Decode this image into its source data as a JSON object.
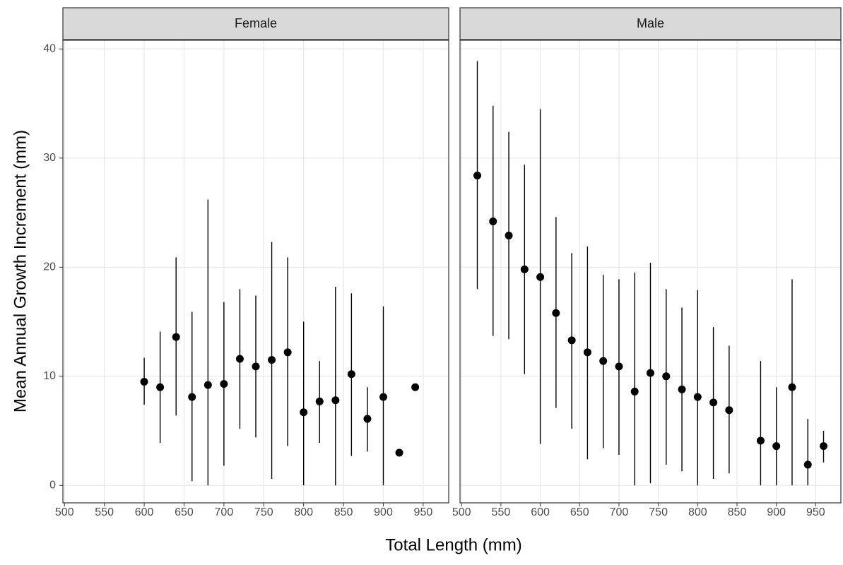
{
  "chart_data": {
    "type": "scatter",
    "x_label": "Total Length (mm)",
    "y_label": "Mean Annual Growth Increment (mm)",
    "xlim": [
      498,
      982
    ],
    "xticks": [
      500,
      550,
      600,
      650,
      700,
      750,
      800,
      850,
      900,
      950
    ],
    "ylim": [
      -1.6,
      40.8
    ],
    "yticks": [
      0,
      10,
      20,
      30,
      40
    ],
    "grid": true,
    "color": "#000000",
    "facets": [
      {
        "title": "Female",
        "x": [
          600,
          620,
          640,
          660,
          680,
          700,
          720,
          740,
          760,
          780,
          800,
          820,
          840,
          860,
          880,
          900,
          920,
          940
        ],
        "values": [
          9.5,
          9.0,
          13.6,
          8.1,
          9.2,
          9.3,
          11.6,
          10.9,
          11.5,
          12.2,
          6.7,
          7.7,
          7.8,
          10.2,
          6.1,
          8.1,
          3.0,
          9.0
        ],
        "lower": [
          7.4,
          3.9,
          6.4,
          0.4,
          0,
          1.8,
          5.2,
          4.4,
          0.6,
          3.6,
          0,
          3.9,
          0,
          2.7,
          3.1,
          0,
          null,
          null
        ],
        "upper": [
          11.7,
          14.1,
          20.9,
          15.9,
          26.2,
          16.8,
          18.0,
          17.4,
          22.3,
          20.9,
          15.0,
          11.4,
          18.2,
          17.6,
          9.0,
          16.4,
          null,
          null
        ]
      },
      {
        "title": "Male",
        "x": [
          520,
          540,
          560,
          580,
          600,
          620,
          640,
          660,
          680,
          700,
          720,
          740,
          760,
          780,
          800,
          820,
          840,
          880,
          900,
          920,
          940,
          960
        ],
        "values": [
          28.4,
          24.2,
          22.9,
          19.8,
          19.1,
          15.8,
          13.3,
          12.2,
          11.4,
          10.9,
          8.6,
          10.3,
          10.0,
          8.8,
          8.1,
          7.6,
          6.9,
          4.1,
          3.6,
          9.0,
          1.9,
          3.6
        ],
        "lower": [
          18.0,
          13.7,
          13.4,
          10.2,
          3.8,
          7.1,
          5.2,
          2.4,
          3.4,
          2.8,
          0,
          0.2,
          1.9,
          1.3,
          0,
          0.6,
          1.1,
          0,
          0,
          0,
          0,
          2.1
        ],
        "upper": [
          38.9,
          34.8,
          32.4,
          29.4,
          34.5,
          24.6,
          21.3,
          21.9,
          19.3,
          18.9,
          19.5,
          20.4,
          18.0,
          16.3,
          17.9,
          14.5,
          12.8,
          11.4,
          9.0,
          18.9,
          6.1,
          5.0
        ]
      }
    ]
  }
}
